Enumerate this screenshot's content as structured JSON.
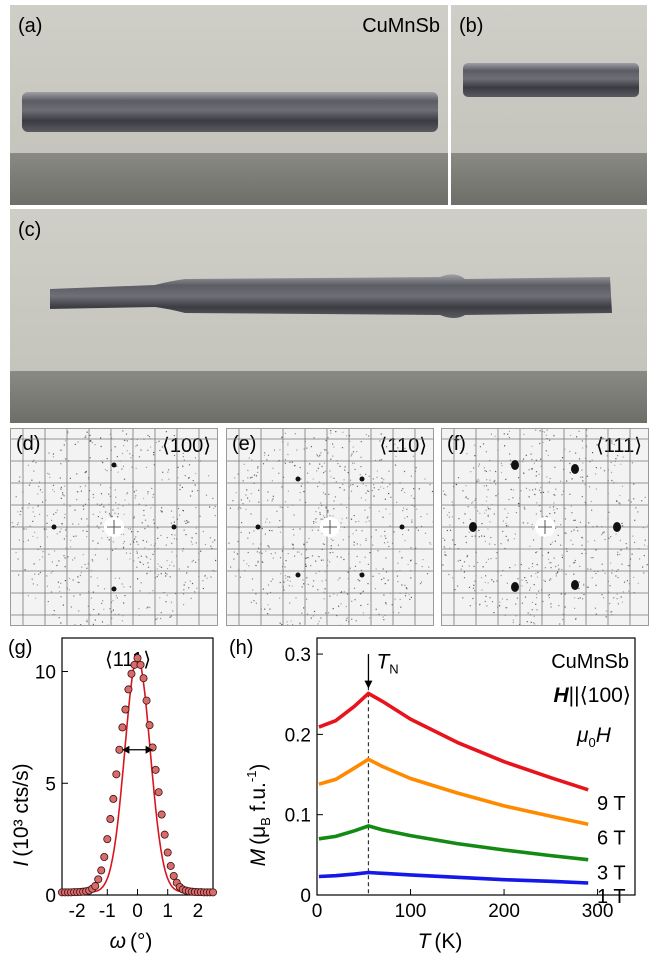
{
  "panels": {
    "a": {
      "label": "(a)",
      "title": "CuMnSb"
    },
    "b": {
      "label": "(b)"
    },
    "c": {
      "label": "(c)"
    },
    "d": {
      "label": "(d)",
      "direction": "⟨100⟩"
    },
    "e": {
      "label": "(e)",
      "direction": "⟨110⟩"
    },
    "f": {
      "label": "(f)",
      "direction": "⟨111⟩"
    }
  },
  "chart_data": [
    {
      "id": "g",
      "type": "scatter",
      "panel_label": "(g)",
      "annotation": "⟨111⟩",
      "xlabel_sym": "ω",
      "xlabel_unit": "(°)",
      "ylabel_sym": "I",
      "ylabel_unit": "(10³ cts/s)",
      "xlim": [
        -2.5,
        2.5
      ],
      "ylim": [
        0,
        11.5
      ],
      "xticks": [
        -2,
        -1,
        0,
        1,
        2
      ],
      "xtick_labels": [
        "-2",
        "-1",
        "0",
        "1",
        "2"
      ],
      "yticks": [
        0,
        5,
        10
      ],
      "ytick_labels": [
        "0",
        "5",
        "10"
      ],
      "points": [
        [
          -2.5,
          0.12
        ],
        [
          -2.4,
          0.12
        ],
        [
          -2.3,
          0.12
        ],
        [
          -2.2,
          0.12
        ],
        [
          -2.1,
          0.13
        ],
        [
          -2.0,
          0.13
        ],
        [
          -1.9,
          0.14
        ],
        [
          -1.8,
          0.15
        ],
        [
          -1.7,
          0.17
        ],
        [
          -1.6,
          0.2
        ],
        [
          -1.5,
          0.28
        ],
        [
          -1.4,
          0.4
        ],
        [
          -1.3,
          0.7
        ],
        [
          -1.2,
          1.1
        ],
        [
          -1.1,
          1.7
        ],
        [
          -1.0,
          2.5
        ],
        [
          -0.9,
          3.4
        ],
        [
          -0.8,
          4.3
        ],
        [
          -0.7,
          5.4
        ],
        [
          -0.6,
          6.5
        ],
        [
          -0.5,
          7.5
        ],
        [
          -0.4,
          8.3
        ],
        [
          -0.3,
          9.2
        ],
        [
          -0.2,
          9.9
        ],
        [
          -0.1,
          10.3
        ],
        [
          0.0,
          10.6
        ],
        [
          0.1,
          10.3
        ],
        [
          0.2,
          9.7
        ],
        [
          0.3,
          8.7
        ],
        [
          0.4,
          7.6
        ],
        [
          0.5,
          6.6
        ],
        [
          0.6,
          5.6
        ],
        [
          0.7,
          4.6
        ],
        [
          0.8,
          3.6
        ],
        [
          0.9,
          2.7
        ],
        [
          1.0,
          1.9
        ],
        [
          1.1,
          1.3
        ],
        [
          1.2,
          0.85
        ],
        [
          1.3,
          0.55
        ],
        [
          1.4,
          0.36
        ],
        [
          1.5,
          0.25
        ],
        [
          1.6,
          0.2
        ],
        [
          1.7,
          0.17
        ],
        [
          1.8,
          0.15
        ],
        [
          1.9,
          0.14
        ],
        [
          2.0,
          0.13
        ],
        [
          2.1,
          0.13
        ],
        [
          2.2,
          0.12
        ],
        [
          2.3,
          0.12
        ],
        [
          2.4,
          0.12
        ],
        [
          2.5,
          0.12
        ]
      ],
      "fit_center": 0.0,
      "fit_amplitude": 10.5,
      "fit_sigma": 0.42,
      "fit_baseline": 0.12,
      "fwhm": [
        -0.5,
        0.5
      ],
      "fwhm_y": 6.5
    },
    {
      "id": "h",
      "type": "line",
      "panel_label": "(h)",
      "title": "CuMnSb",
      "field_sym": "H",
      "field_dir": "||⟨100⟩",
      "legend_title_mu": "μ",
      "legend_title_sub": "0",
      "legend_title_h": "H",
      "annotation_T": "T",
      "annotation_sub": "N",
      "TN": 55,
      "xlabel_sym": "T",
      "xlabel_unit": "(K)",
      "ylabel_sym": "M",
      "ylabel_unit": "(μ",
      "ylabel_sub": "B",
      "ylabel_rest": " f.u.",
      "ylabel_sup": "-1",
      "ylabel_end": ")",
      "xlim": [
        0,
        340
      ],
      "ylim": [
        0,
        0.32
      ],
      "xticks": [
        0,
        100,
        200,
        300
      ],
      "xtick_labels": [
        "0",
        "100",
        "200",
        "300"
      ],
      "yticks": [
        0,
        0.1,
        0.2,
        0.3
      ],
      "ytick_labels": [
        "0",
        "0.1",
        "0.2",
        "0.3"
      ],
      "series": [
        {
          "name": "9 T",
          "color": "#e8141c",
          "x": [
            2,
            20,
            40,
            55,
            70,
            100,
            150,
            200,
            250,
            290
          ],
          "y": [
            0.209,
            0.217,
            0.235,
            0.251,
            0.241,
            0.219,
            0.19,
            0.166,
            0.146,
            0.131
          ]
        },
        {
          "name": "6 T",
          "color": "#ff8a00",
          "x": [
            2,
            20,
            40,
            55,
            70,
            100,
            150,
            200,
            250,
            290
          ],
          "y": [
            0.138,
            0.144,
            0.158,
            0.169,
            0.16,
            0.145,
            0.127,
            0.111,
            0.098,
            0.088
          ]
        },
        {
          "name": "3 T",
          "color": "#138a13",
          "x": [
            2,
            20,
            40,
            55,
            70,
            100,
            150,
            200,
            250,
            290
          ],
          "y": [
            0.07,
            0.073,
            0.08,
            0.086,
            0.081,
            0.074,
            0.064,
            0.056,
            0.049,
            0.044
          ]
        },
        {
          "name": "1 T",
          "color": "#1518e6",
          "x": [
            2,
            20,
            40,
            55,
            70,
            100,
            150,
            200,
            250,
            290
          ],
          "y": [
            0.023,
            0.024,
            0.026,
            0.028,
            0.027,
            0.025,
            0.022,
            0.019,
            0.017,
            0.015
          ]
        }
      ]
    }
  ]
}
